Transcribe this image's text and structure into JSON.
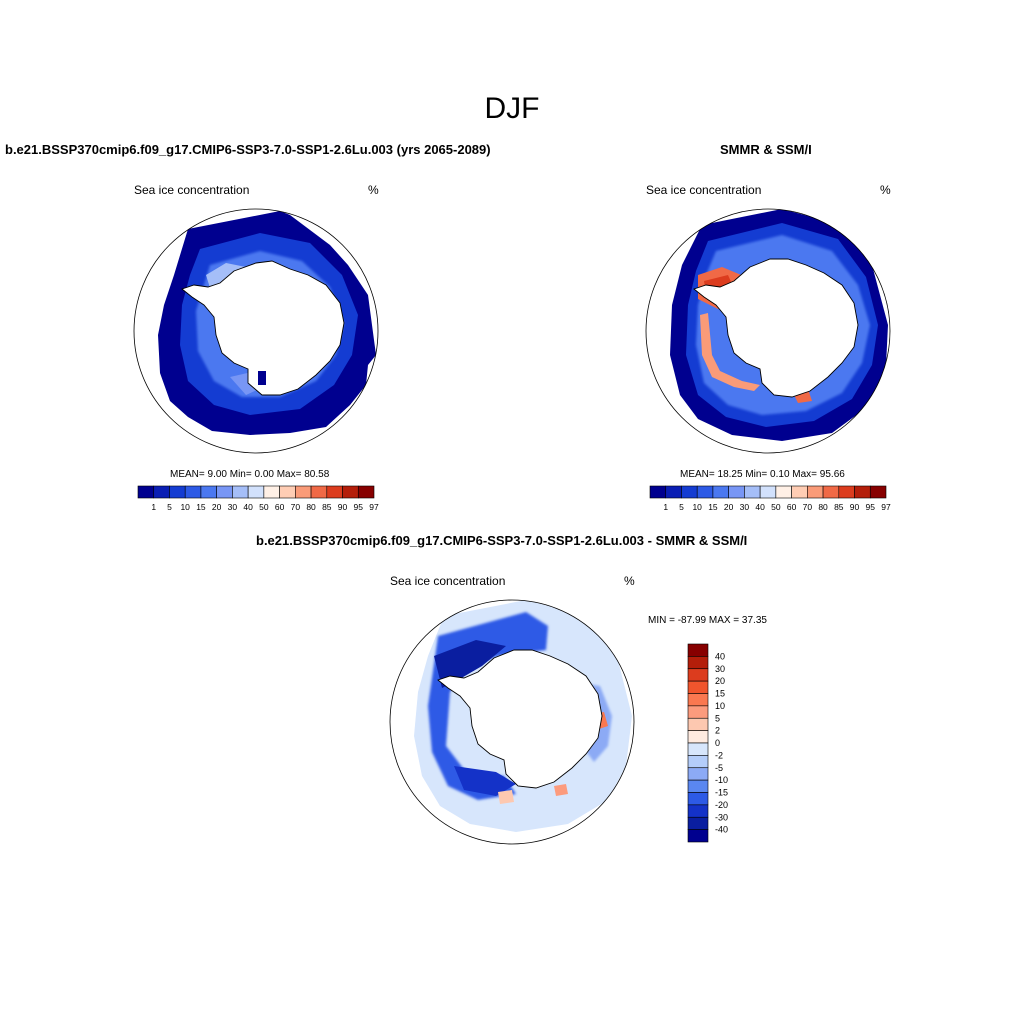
{
  "figure": {
    "title": "DJF"
  },
  "panels": [
    {
      "title": "b.e21.BSSP370cmip6.f09_g17.CMIP6-SSP3-7.0-SSP1-2.6Lu.003 (yrs 2065-2089)",
      "left_label": "Sea ice concentration",
      "right_label": "%",
      "stats": "MEAN=   9.00  Min=   0.00  Max=  80.58"
    },
    {
      "title": "SMMR & SSM/I",
      "left_label": "Sea ice concentration",
      "right_label": "%",
      "stats": "MEAN=  18.25  Min=   0.10  Max=  95.66"
    },
    {
      "title": "b.e21.BSSP370cmip6.f09_g17.CMIP6-SSP3-7.0-SSP1-2.6Lu.003 - SMMR & SSM/I",
      "left_label": "Sea ice concentration",
      "right_label": "%",
      "stats": "MIN = -87.99 MAX =  37.35"
    }
  ],
  "colorbars": {
    "concentration": {
      "labels": [
        "1",
        "5",
        "10",
        "15",
        "20",
        "30",
        "40",
        "50",
        "60",
        "70",
        "80",
        "85",
        "90",
        "95",
        "97"
      ],
      "colors": [
        "#00008f",
        "#0a1eb4",
        "#143cd2",
        "#2d5ae6",
        "#4b78f0",
        "#7896f5",
        "#a5bef8",
        "#d2e1fc",
        "#fff0e6",
        "#ffcdb4",
        "#fa9b78",
        "#f06946",
        "#dc3c1e",
        "#b41e0a",
        "#870000"
      ]
    },
    "difference": {
      "labels": [
        "40",
        "30",
        "20",
        "15",
        "10",
        "5",
        "2",
        "0",
        "-2",
        "-5",
        "-10",
        "-15",
        "-20",
        "-30",
        "-40"
      ],
      "colors": [
        "#870000",
        "#b41e0a",
        "#dc3c1e",
        "#f0552d",
        "#fa7850",
        "#fc9b7d",
        "#fdc8b0",
        "#ffebe0",
        "#d7e6fc",
        "#b4cdfa",
        "#8caaf5",
        "#5a87f0",
        "#2d5ae6",
        "#1432c8",
        "#0a1ea0",
        "#00008f"
      ]
    }
  }
}
